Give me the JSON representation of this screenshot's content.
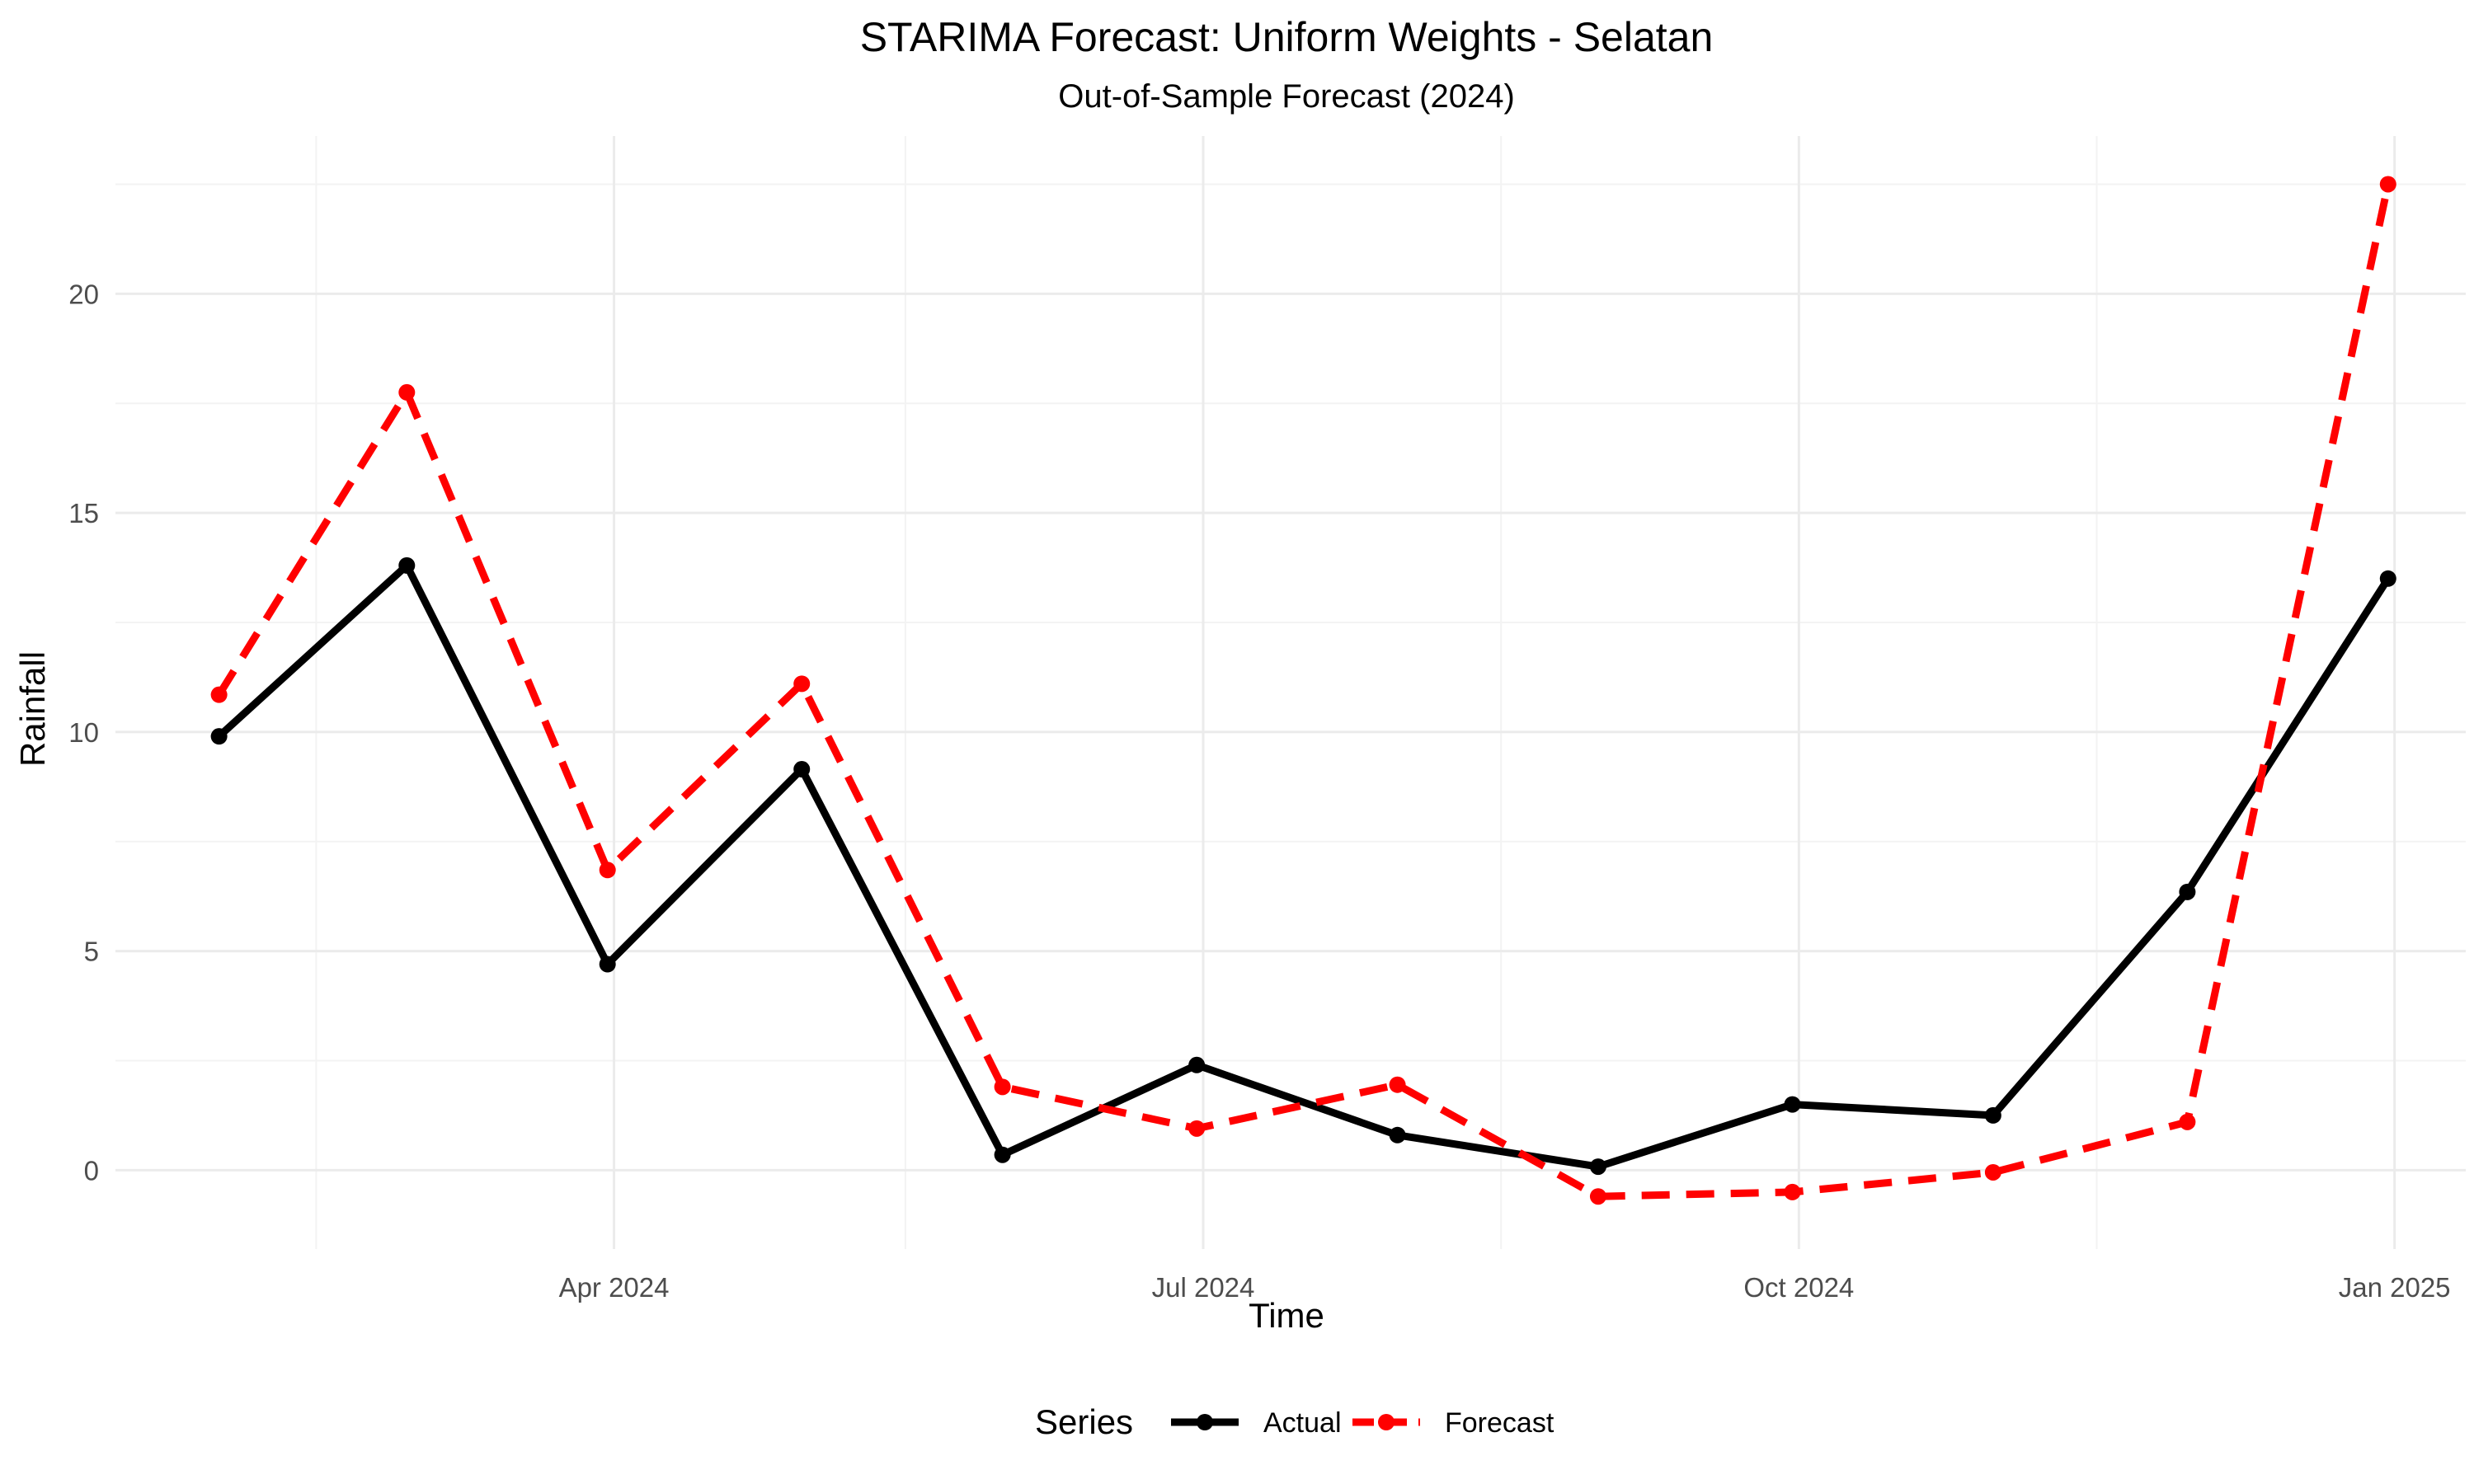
{
  "chart_data": {
    "type": "line",
    "title": "STARIMA Forecast: Uniform Weights - Selatan",
    "subtitle": "Out-of-Sample Forecast (2024)",
    "xlabel": "Time",
    "ylabel": "Rainfall",
    "x": [
      "2024-01-31",
      "2024-02-29",
      "2024-03-31",
      "2024-04-30",
      "2024-05-31",
      "2024-06-30",
      "2024-07-31",
      "2024-08-31",
      "2024-09-30",
      "2024-10-31",
      "2024-11-30",
      "2024-12-31"
    ],
    "xlim": [
      "2024-01-15",
      "2025-01-12"
    ],
    "ylim": [
      -1.8,
      23.6
    ],
    "x_ticks": [
      {
        "date": "2024-04-01",
        "label": "Apr 2024"
      },
      {
        "date": "2024-07-01",
        "label": "Jul 2024"
      },
      {
        "date": "2024-10-01",
        "label": "Oct 2024"
      },
      {
        "date": "2025-01-01",
        "label": "Jan 2025"
      }
    ],
    "x_minor_ticks": [
      "2024-02-15",
      "2024-05-16",
      "2024-08-16",
      "2024-11-16"
    ],
    "y_ticks": [
      0,
      5,
      10,
      15,
      20
    ],
    "y_minor_ticks": [
      2.5,
      7.5,
      12.5,
      17.5,
      22.5
    ],
    "grid": true,
    "legend": {
      "title": "Series",
      "position": "bottom"
    },
    "series": [
      {
        "name": "Actual",
        "color": "#000000",
        "dash": "solid",
        "values": [
          9.9,
          13.8,
          4.7,
          9.15,
          0.35,
          2.4,
          0.8,
          0.08,
          1.5,
          1.25,
          6.35,
          13.5
        ]
      },
      {
        "name": "Forecast",
        "color": "#ff0000",
        "dash": "dashed",
        "values": [
          10.85,
          17.75,
          6.85,
          11.1,
          1.9,
          0.95,
          1.95,
          -0.6,
          -0.5,
          -0.05,
          1.1,
          22.5
        ]
      }
    ]
  }
}
